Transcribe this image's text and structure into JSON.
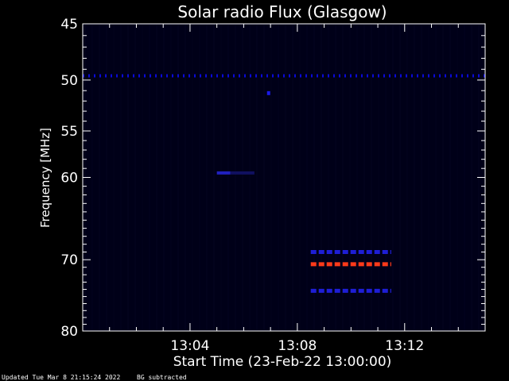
{
  "chart_data": {
    "type": "heatmap",
    "title": "Solar radio Flux (Glasgow)",
    "xlabel": "Start Time (23-Feb-22 13:00:00)",
    "ylabel": "Frequency [MHz]",
    "x_ticks": [
      "13:04",
      "13:08",
      "13:12"
    ],
    "x_tick_minutes": [
      4,
      8,
      12
    ],
    "xlim_minutes": [
      0,
      15
    ],
    "y_ticks": [
      45,
      50,
      55,
      60,
      70,
      80
    ],
    "ylim": [
      45,
      80
    ],
    "y_scale": "log",
    "background_color": "#000018",
    "features": [
      {
        "label": "interference line",
        "freq_mhz": 49.6,
        "t_start_min": 0.0,
        "t_end_min": 15.0,
        "color": "#0a0ad8",
        "style": "dotted"
      },
      {
        "label": "spot",
        "freq_mhz": 51.2,
        "t_start_min": 6.9,
        "t_end_min": 7.0,
        "color": "#1a1ae8",
        "style": "solid"
      },
      {
        "label": "short burst",
        "freq_mhz": 59.5,
        "t_start_min": 5.0,
        "t_end_min": 5.5,
        "color": "#2020c0",
        "style": "solid"
      },
      {
        "label": "faint tail",
        "freq_mhz": 59.5,
        "t_start_min": 5.5,
        "t_end_min": 6.4,
        "color": "#101060",
        "style": "solid"
      },
      {
        "label": "band upper",
        "freq_mhz": 69.0,
        "t_start_min": 8.5,
        "t_end_min": 11.5,
        "color": "#1e1ed6",
        "style": "dashed"
      },
      {
        "label": "band strong",
        "freq_mhz": 70.6,
        "t_start_min": 8.5,
        "t_end_min": 11.5,
        "color": "#ff3a1a",
        "style": "dashed"
      },
      {
        "label": "band lower",
        "freq_mhz": 74.2,
        "t_start_min": 8.5,
        "t_end_min": 11.5,
        "color": "#1e1ed6",
        "style": "dashed"
      }
    ],
    "grid": false
  },
  "footer": {
    "updated": "Updated Tue Mar  8 21:15:24 2022",
    "note": "BG subtracted"
  }
}
